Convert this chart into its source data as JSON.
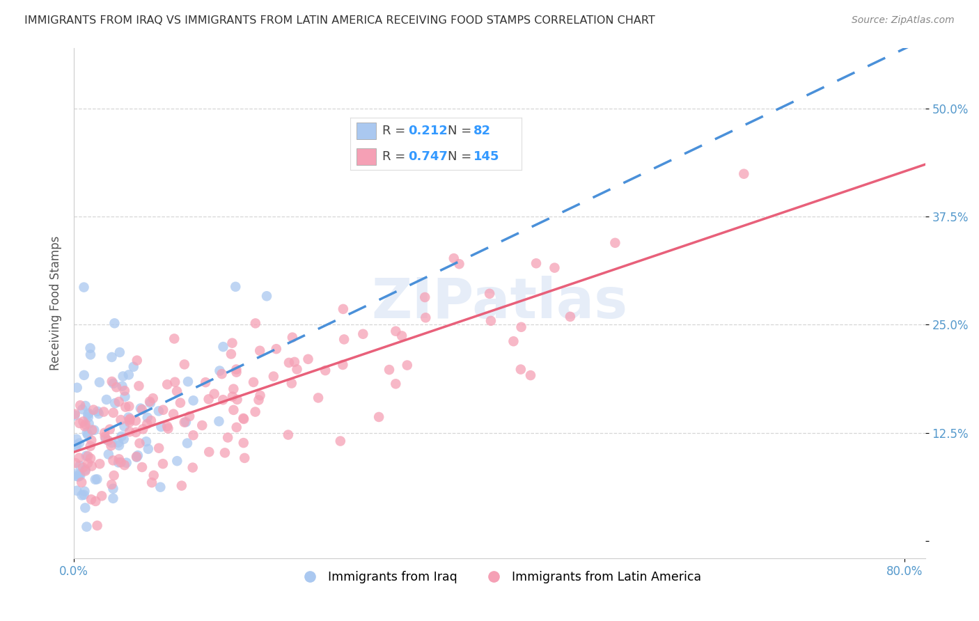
{
  "title": "IMMIGRANTS FROM IRAQ VS IMMIGRANTS FROM LATIN AMERICA RECEIVING FOOD STAMPS CORRELATION CHART",
  "source": "Source: ZipAtlas.com",
  "ylabel": "Receiving Food Stamps",
  "xlim": [
    0.0,
    0.82
  ],
  "ylim": [
    -0.02,
    0.57
  ],
  "iraq_R": 0.212,
  "iraq_N": 82,
  "latin_R": 0.747,
  "latin_N": 145,
  "iraq_color": "#aac8f0",
  "latin_color": "#f5a0b5",
  "iraq_line_color": "#4a90d9",
  "latin_line_color": "#e8607a",
  "watermark_color": "#c8d8f0",
  "legend_text_color": "#444444",
  "legend_RN_color": "#3399ff",
  "background_color": "#ffffff",
  "grid_color": "#cccccc",
  "tick_color": "#5599cc",
  "title_color": "#333333",
  "source_color": "#888888",
  "y_tick_vals": [
    0.0,
    0.125,
    0.25,
    0.375,
    0.5
  ],
  "y_tick_labels": [
    "",
    "12.5%",
    "25.0%",
    "37.5%",
    "50.0%"
  ],
  "x_tick_vals": [
    0.0,
    0.8
  ],
  "x_tick_labels": [
    "0.0%",
    "80.0%"
  ]
}
